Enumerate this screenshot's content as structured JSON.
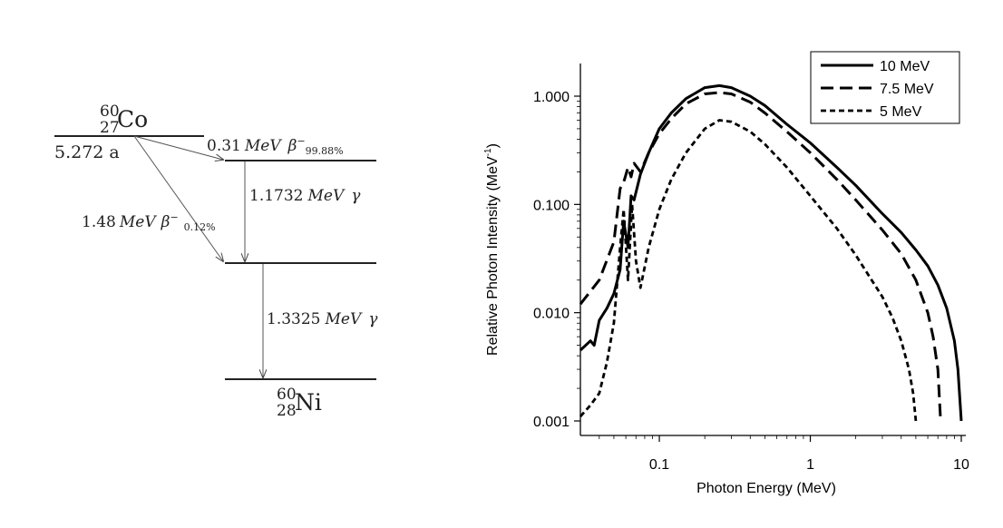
{
  "decay_scheme": {
    "parent": {
      "mass": "60",
      "atomic": "27",
      "symbol": "Co"
    },
    "half_life": "5.272 a",
    "daughter": {
      "mass": "60",
      "atomic": "28",
      "symbol": "Ni"
    },
    "beta1": {
      "energy": "0.31",
      "unit": "MeV",
      "symbol": "β",
      "sup": "−",
      "branch": "99.88%"
    },
    "beta2": {
      "energy": "1.48",
      "unit": "MeV",
      "symbol": "β",
      "sup": "−",
      "branch": "0.12%"
    },
    "gamma1": {
      "energy": "1.1732",
      "unit": "MeV",
      "symbol": "γ"
    },
    "gamma2": {
      "energy": "1.3325",
      "unit": "MeV",
      "symbol": "γ"
    }
  },
  "chart_data": {
    "type": "line",
    "xscale": "log",
    "yscale": "log",
    "xlim": [
      0.03,
      10
    ],
    "ylim": [
      0.0008,
      2.0
    ],
    "xlabel": "Photon Energy (MeV)",
    "ylabel": "Relative Photon Intensity (MeV",
    "ylabel_sup": "-1",
    "ylabel_close": ")",
    "xticks": [
      "0.1",
      "1",
      "10"
    ],
    "yticks": [
      "0.001",
      "0.010",
      "0.100",
      "1.000"
    ],
    "legend_position": "top-right",
    "series": [
      {
        "name": "10 MeV",
        "style": "solid",
        "x": [
          0.03,
          0.035,
          0.037,
          0.04,
          0.045,
          0.05,
          0.055,
          0.058,
          0.062,
          0.065,
          0.068,
          0.075,
          0.085,
          0.1,
          0.12,
          0.15,
          0.2,
          0.25,
          0.3,
          0.4,
          0.5,
          0.7,
          1.0,
          1.5,
          2.0,
          3.0,
          4.0,
          5.0,
          6.0,
          7.0,
          8.0,
          9.0,
          9.5,
          10.0
        ],
        "y": [
          0.0045,
          0.0055,
          0.005,
          0.0085,
          0.011,
          0.015,
          0.025,
          0.07,
          0.04,
          0.12,
          0.11,
          0.19,
          0.3,
          0.5,
          0.7,
          0.95,
          1.2,
          1.25,
          1.2,
          1.0,
          0.82,
          0.55,
          0.37,
          0.22,
          0.15,
          0.082,
          0.055,
          0.038,
          0.027,
          0.018,
          0.011,
          0.0055,
          0.003,
          0.001
        ]
      },
      {
        "name": "7.5 MeV",
        "style": "dashed",
        "x": [
          0.03,
          0.04,
          0.05,
          0.055,
          0.058,
          0.062,
          0.065,
          0.068,
          0.075,
          0.085,
          0.1,
          0.12,
          0.15,
          0.2,
          0.25,
          0.3,
          0.4,
          0.5,
          0.7,
          1.0,
          1.5,
          2.0,
          3.0,
          4.0,
          5.0,
          6.0,
          6.5,
          7.0,
          7.3
        ],
        "y": [
          0.012,
          0.02,
          0.045,
          0.14,
          0.16,
          0.22,
          0.18,
          0.24,
          0.2,
          0.3,
          0.45,
          0.62,
          0.85,
          1.05,
          1.08,
          1.05,
          0.88,
          0.7,
          0.47,
          0.3,
          0.17,
          0.11,
          0.058,
          0.035,
          0.02,
          0.01,
          0.006,
          0.003,
          0.001
        ]
      },
      {
        "name": "5 MeV",
        "style": "short-dash",
        "x": [
          0.03,
          0.035,
          0.04,
          0.045,
          0.05,
          0.055,
          0.058,
          0.062,
          0.066,
          0.07,
          0.075,
          0.085,
          0.1,
          0.12,
          0.15,
          0.2,
          0.25,
          0.3,
          0.4,
          0.5,
          0.7,
          1.0,
          1.5,
          2.0,
          3.0,
          3.5,
          4.0,
          4.5,
          4.8,
          5.0
        ],
        "y": [
          0.0011,
          0.0014,
          0.0018,
          0.0035,
          0.008,
          0.04,
          0.09,
          0.02,
          0.1,
          0.03,
          0.017,
          0.04,
          0.09,
          0.17,
          0.3,
          0.5,
          0.6,
          0.58,
          0.47,
          0.36,
          0.22,
          0.12,
          0.06,
          0.034,
          0.014,
          0.009,
          0.0055,
          0.003,
          0.0018,
          0.001
        ]
      }
    ]
  }
}
